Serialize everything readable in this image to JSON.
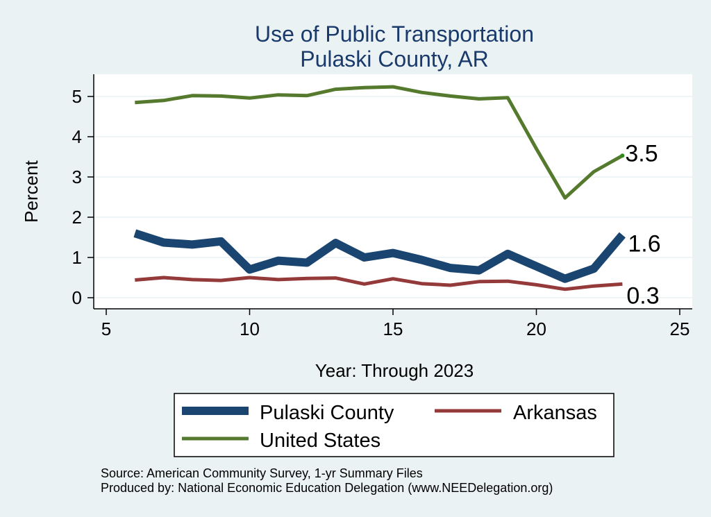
{
  "chart_data": {
    "type": "line",
    "title": "Use of Public Transportation",
    "subtitle": "Pulaski County, AR",
    "xlabel": "Year: Through 2023",
    "ylabel": "Percent",
    "xlim": [
      5,
      25
    ],
    "ylim": [
      0,
      5.5
    ],
    "xticks": [
      "5",
      "10",
      "15",
      "20",
      "25"
    ],
    "yticks": [
      "0",
      "1",
      "2",
      "3",
      "4",
      "5"
    ],
    "grid": true,
    "legend_position": "bottom",
    "x": [
      6,
      7,
      8,
      9,
      10,
      11,
      12,
      13,
      14,
      15,
      16,
      17,
      18,
      19,
      20,
      21,
      22,
      23
    ],
    "series": [
      {
        "name": "Pulaski County",
        "color": "#1a4570",
        "values": [
          1.6,
          1.37,
          1.32,
          1.4,
          0.7,
          0.92,
          0.87,
          1.36,
          1.0,
          1.11,
          0.94,
          0.74,
          0.68,
          1.09,
          0.78,
          0.47,
          0.72,
          1.56
        ],
        "end_label": "1.6"
      },
      {
        "name": "Arkansas",
        "color": "#943a3a",
        "values": [
          0.44,
          0.5,
          0.45,
          0.43,
          0.5,
          0.45,
          0.48,
          0.49,
          0.34,
          0.47,
          0.35,
          0.31,
          0.4,
          0.41,
          0.32,
          0.21,
          0.29,
          0.34
        ],
        "end_label": "0.3"
      },
      {
        "name": "United States",
        "color": "#557a2e",
        "values": [
          4.85,
          4.9,
          5.02,
          5.01,
          4.96,
          5.04,
          5.02,
          5.18,
          5.22,
          5.24,
          5.1,
          5.01,
          4.94,
          4.97,
          3.7,
          2.48,
          3.13,
          3.53
        ],
        "end_label": "3.5"
      }
    ]
  },
  "notes": {
    "source": "Source: American Community Survey, 1-yr Summary Files",
    "producer": "Produced by: National Economic Education Delegation (www.NEEDelegation.org)"
  }
}
